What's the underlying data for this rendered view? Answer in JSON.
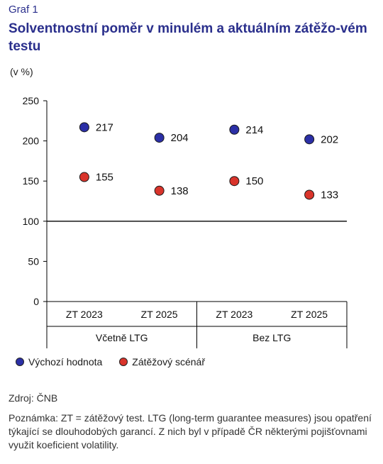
{
  "header": {
    "graf_label": "Graf 1",
    "title": "Solventnostní poměr v minulém a aktuálním zátěžo-vém testu",
    "unit": "(v %)"
  },
  "legend": {
    "items": [
      {
        "label": "Výchozí hodnota",
        "color": "#2b2fa6"
      },
      {
        "label": "Zátěžový scénář",
        "color": "#d9342b"
      }
    ]
  },
  "footer": {
    "source": "Zdroj: ČNB",
    "note": "Poznámka: ZT = zátěžový test. LTG (long-term guarantee measures) jsou opatření týkající se dlouhodobých garancí. Z nich byl v případě ČR některými pojišťovnami využit koeficient volatility."
  },
  "chart_data": {
    "type": "scatter",
    "categories": [
      "ZT 2023",
      "ZT 2025",
      "ZT 2023",
      "ZT 2025"
    ],
    "groups": [
      {
        "label": "Včetně LTG",
        "span": 2
      },
      {
        "label": "Bez LTG",
        "span": 2
      }
    ],
    "series": [
      {
        "name": "Výchozí hodnota",
        "color": "#2b2fa6",
        "values": [
          217,
          204,
          214,
          202
        ]
      },
      {
        "name": "Zátěžový scénář",
        "color": "#d9342b",
        "values": [
          155,
          138,
          150,
          133
        ]
      }
    ],
    "ylim": [
      0,
      250
    ],
    "yticks": [
      0,
      50,
      100,
      150,
      200,
      250
    ],
    "reference_line": 100,
    "data_labels": true
  }
}
